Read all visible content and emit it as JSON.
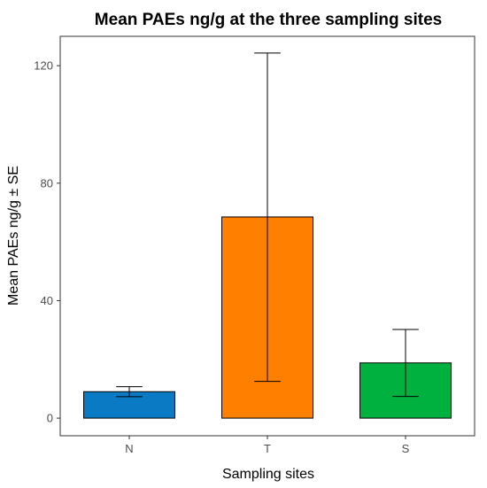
{
  "chart_data": {
    "type": "bar",
    "title": "Mean PAEs ng/g at the three sampling sites",
    "xlabel": "Sampling sites",
    "ylabel": "Mean PAEs ng/g ± SE",
    "categories": [
      "N",
      "T",
      "S"
    ],
    "values": [
      9,
      68.5,
      18.8
    ],
    "error_upper": [
      10.7,
      124.3,
      30.2
    ],
    "error_lower": [
      7.3,
      12.5,
      7.4
    ],
    "colors": [
      "#0a7ac4",
      "#ff8000",
      "#00b140"
    ],
    "ylim": [
      -6,
      130
    ],
    "yticks": [
      0,
      40,
      80,
      120
    ],
    "grid": false,
    "legend": "none"
  }
}
